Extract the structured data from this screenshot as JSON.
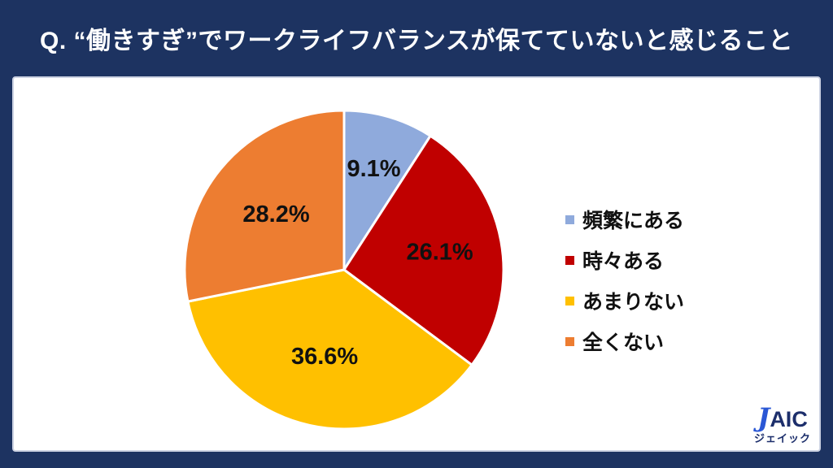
{
  "header": {
    "title": "Q. “働きすぎ”でワークライフバランスが保てていないと感じること"
  },
  "chart_data": {
    "type": "pie",
    "categories": [
      "頻繁にある",
      "時々ある",
      "あまりない",
      "全くない"
    ],
    "values": [
      9.1,
      26.1,
      36.6,
      28.2
    ],
    "labels": [
      "9.1%",
      "26.1%",
      "36.6%",
      "28.2%"
    ],
    "unit": "%",
    "colors": [
      "#8FAADC",
      "#C00000",
      "#FFC000",
      "#ED7D31"
    ],
    "start_angle_deg": 0,
    "direction": "clockwise",
    "legend_position": "right",
    "data_labels": "inside"
  },
  "brand": {
    "name": "JAIC",
    "kana": "ジェイック",
    "accent_color": "#2a57d5",
    "navy_color": "#1c2e6b"
  },
  "colors": {
    "background_navy": "#1d3361",
    "panel_background": "#ffffff",
    "panel_border": "#ccd2e2",
    "title_text": "#ffffff",
    "label_text": "#111111"
  }
}
